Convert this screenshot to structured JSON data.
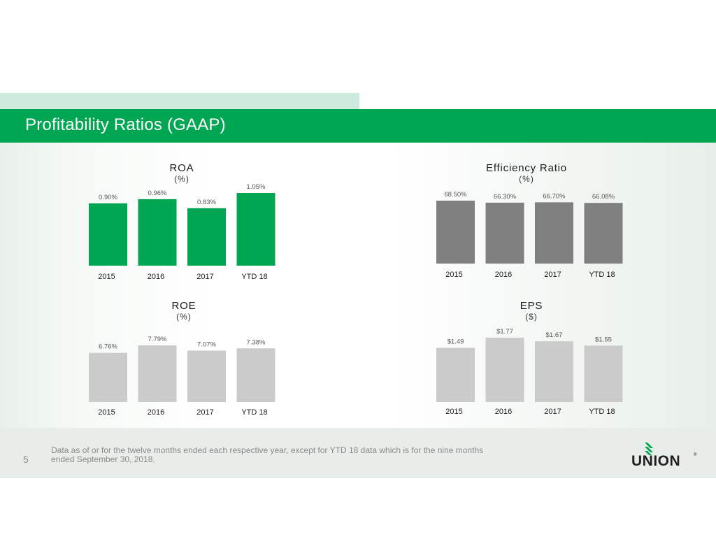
{
  "slide": {
    "title": "Profitability Ratios (GAAP)",
    "page_number": "5",
    "footnote": "Data as of or for the twelve months ended each respective year, except for YTD 18 data which is for the nine months ended September 30, 2018.",
    "logo_text": "UNION",
    "logo_mark": "®",
    "colors": {
      "brand_green": "#00a651",
      "tab_green": "#cdebdc",
      "efficiency_bar": "#808080",
      "light_bar": "#cbcbcb",
      "footer_bg": "#e8ede9"
    }
  },
  "chart_data": [
    {
      "id": "roa",
      "type": "bar",
      "title": "ROA",
      "unit": "(%)",
      "categories": [
        "2015",
        "2016",
        "2017",
        "YTD 18"
      ],
      "values": [
        0.9,
        0.96,
        0.83,
        1.05
      ],
      "labels": [
        "0.90%",
        "0.96%",
        "0.83%",
        "1.05%"
      ],
      "ylim": [
        0,
        1.05
      ],
      "color": "#00a651",
      "grid": false,
      "legend": "none"
    },
    {
      "id": "efficiency",
      "type": "bar",
      "title": "Efficiency Ratio",
      "unit": "(%)",
      "categories": [
        "2015",
        "2016",
        "2017",
        "YTD 18"
      ],
      "values": [
        68.5,
        66.3,
        66.7,
        66.08
      ],
      "labels": [
        "68.50%",
        "66.30%",
        "66.70%",
        "66.08%"
      ],
      "ylim": [
        0,
        68.5
      ],
      "color": "#808080",
      "grid": false,
      "legend": "none"
    },
    {
      "id": "roe",
      "type": "bar",
      "title": "ROE",
      "unit": "(%)",
      "categories": [
        "2015",
        "2016",
        "2017",
        "YTD 18"
      ],
      "values": [
        6.76,
        7.79,
        7.07,
        7.38
      ],
      "labels": [
        "6.76%",
        "7.79%",
        "7.07%",
        "7.38%"
      ],
      "ylim": [
        0,
        7.79
      ],
      "color": "#cbcbcb",
      "grid": false,
      "legend": "none"
    },
    {
      "id": "eps",
      "type": "bar",
      "title": "EPS",
      "unit": "($)",
      "categories": [
        "2015",
        "2016",
        "2017",
        "YTD 18"
      ],
      "values": [
        1.49,
        1.77,
        1.67,
        1.55
      ],
      "labels": [
        "$1.49",
        "$1.77",
        "$1.67",
        "$1.55"
      ],
      "ylim": [
        0,
        1.77
      ],
      "color": "#cbcbcb",
      "grid": false,
      "legend": "none"
    }
  ]
}
